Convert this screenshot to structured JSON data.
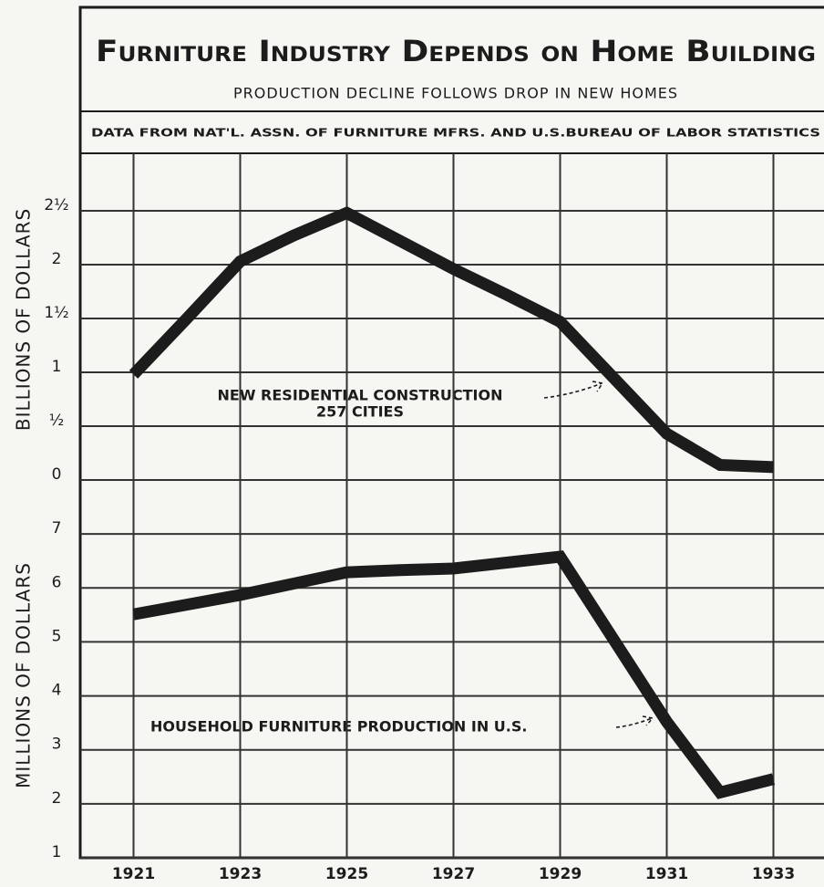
{
  "chart_data": [
    {
      "type": "line",
      "title": "Furniture Industry Depends on Home Building",
      "subtitle": "PRODUCTION DECLINE FOLLOWS DROP IN NEW HOMES",
      "source": "DATA FROM NAT'L. ASSN. OF FURNITURE MFRS. AND U.S.BUREAU OF LABOR STATISTICS",
      "y_label": "BILLIONS OF DOLLARS",
      "x": [
        1921,
        1922,
        1923,
        1924,
        1925,
        1926,
        1927,
        1928,
        1929,
        1930,
        1931,
        1932,
        1933
      ],
      "series": [
        {
          "name": "NEW RESIDENTIAL CONSTRUCTION",
          "color": "#1c1c1c",
          "values": [
            0.98,
            1.5,
            2.03,
            2.27,
            2.48,
            2.22,
            1.96,
            1.72,
            1.47,
            0.95,
            0.43,
            0.14,
            0.12
          ]
        }
      ],
      "annotation": "257 CITIES",
      "xlim": [
        1920,
        1934
      ],
      "ylim": [
        0,
        3
      ],
      "yticks": [
        0,
        {
          "value": 0.5,
          "label": "½"
        },
        1,
        {
          "value": 1.5,
          "label": "1½"
        },
        2,
        {
          "value": 2.5,
          "label": "2½"
        }
      ],
      "grid": true
    },
    {
      "type": "line",
      "y_label": "MILLIONS OF DOLLARS",
      "x": [
        1921,
        1922,
        1923,
        1924,
        1925,
        1926,
        1927,
        1928,
        1929,
        1930,
        1931,
        1932,
        1933
      ],
      "series": [
        {
          "name": "HOUSEHOLD FURNITURE PRODUCTION IN U.S.",
          "color": "#1c1c1c",
          "values": [
            5.51,
            5.69,
            5.87,
            6.08,
            6.29,
            6.33,
            6.36,
            6.47,
            6.58,
            5.05,
            3.52,
            2.21,
            2.46
          ]
        }
      ],
      "xlim": [
        1920,
        1934
      ],
      "xticks": [
        1921,
        1923,
        1925,
        1927,
        1929,
        1931,
        1933
      ],
      "ylim": [
        1,
        8
      ],
      "yticks": [
        1,
        2,
        3,
        4,
        5,
        6,
        7
      ],
      "grid": true
    }
  ]
}
